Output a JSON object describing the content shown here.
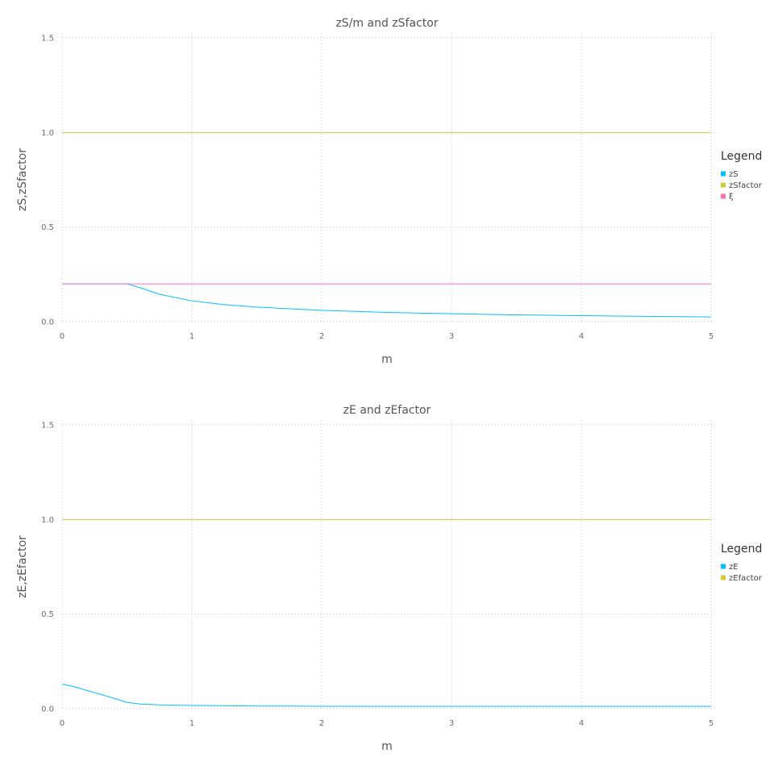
{
  "chart_data": [
    {
      "type": "line",
      "title": "zS/m and zSfactor",
      "xlabel": "m",
      "ylabel": "zS,zSfactor",
      "xlim": [
        0,
        5
      ],
      "ylim": [
        0,
        1.5
      ],
      "xticks": [
        "0",
        "1",
        "2",
        "3",
        "4",
        "5"
      ],
      "yticks": [
        "0.0",
        "0.5",
        "1.0",
        "1.5"
      ],
      "grid": true,
      "legend": {
        "title": "Legend",
        "placement": "right",
        "items": [
          {
            "name": "zS",
            "color": "#00bfff"
          },
          {
            "name": "zSfactor",
            "color": "#d4ca3a"
          },
          {
            "name": "ξ",
            "color": "#ff6db6"
          }
        ]
      },
      "series": [
        {
          "name": "zS",
          "color": "#00bfff",
          "x": [
            0,
            0.25,
            0.5,
            0.6,
            0.75,
            1,
            1.25,
            1.5,
            2,
            2.5,
            3,
            3.5,
            4,
            4.5,
            5
          ],
          "y": [
            0.2,
            0.2,
            0.2,
            0.18,
            0.145,
            0.11,
            0.09,
            0.077,
            0.06,
            0.049,
            0.042,
            0.036,
            0.032,
            0.028,
            0.025
          ]
        },
        {
          "name": "zSfactor",
          "color": "#d4ca3a",
          "x": [
            0,
            0.5,
            1,
            2,
            3,
            4,
            5
          ],
          "y": [
            1.0,
            1.0,
            1.0,
            1.0,
            1.0,
            1.0,
            1.0
          ]
        },
        {
          "name": "ξ",
          "color": "#ff6db6",
          "x": [
            0,
            5
          ],
          "y": [
            0.2,
            0.2
          ]
        }
      ]
    },
    {
      "type": "line",
      "title": "zE and zEfactor",
      "xlabel": "m",
      "ylabel": "zE,zEfactor",
      "xlim": [
        0,
        5
      ],
      "ylim": [
        0,
        1.5
      ],
      "xticks": [
        "0",
        "1",
        "2",
        "3",
        "4",
        "5"
      ],
      "yticks": [
        "0.0",
        "0.5",
        "1.0",
        "1.5"
      ],
      "grid": true,
      "legend": {
        "title": "Legend",
        "placement": "right",
        "items": [
          {
            "name": "zE",
            "color": "#00bfff"
          },
          {
            "name": "zEfactor",
            "color": "#d4ca3a"
          }
        ]
      },
      "series": [
        {
          "name": "zE",
          "color": "#00bfff",
          "x": [
            0,
            0.1,
            0.2,
            0.3,
            0.4,
            0.5,
            0.6,
            0.75,
            1,
            1.5,
            2,
            3,
            4,
            5
          ],
          "y": [
            0.13,
            0.115,
            0.095,
            0.075,
            0.055,
            0.033,
            0.025,
            0.02,
            0.017,
            0.014,
            0.013,
            0.012,
            0.012,
            0.012
          ]
        },
        {
          "name": "zEfactor",
          "color": "#d4ca3a",
          "x": [
            0,
            0.5,
            1,
            2,
            3,
            4,
            5
          ],
          "y": [
            1.0,
            1.0,
            1.0,
            1.0,
            1.0,
            1.0,
            1.0
          ]
        }
      ]
    }
  ]
}
